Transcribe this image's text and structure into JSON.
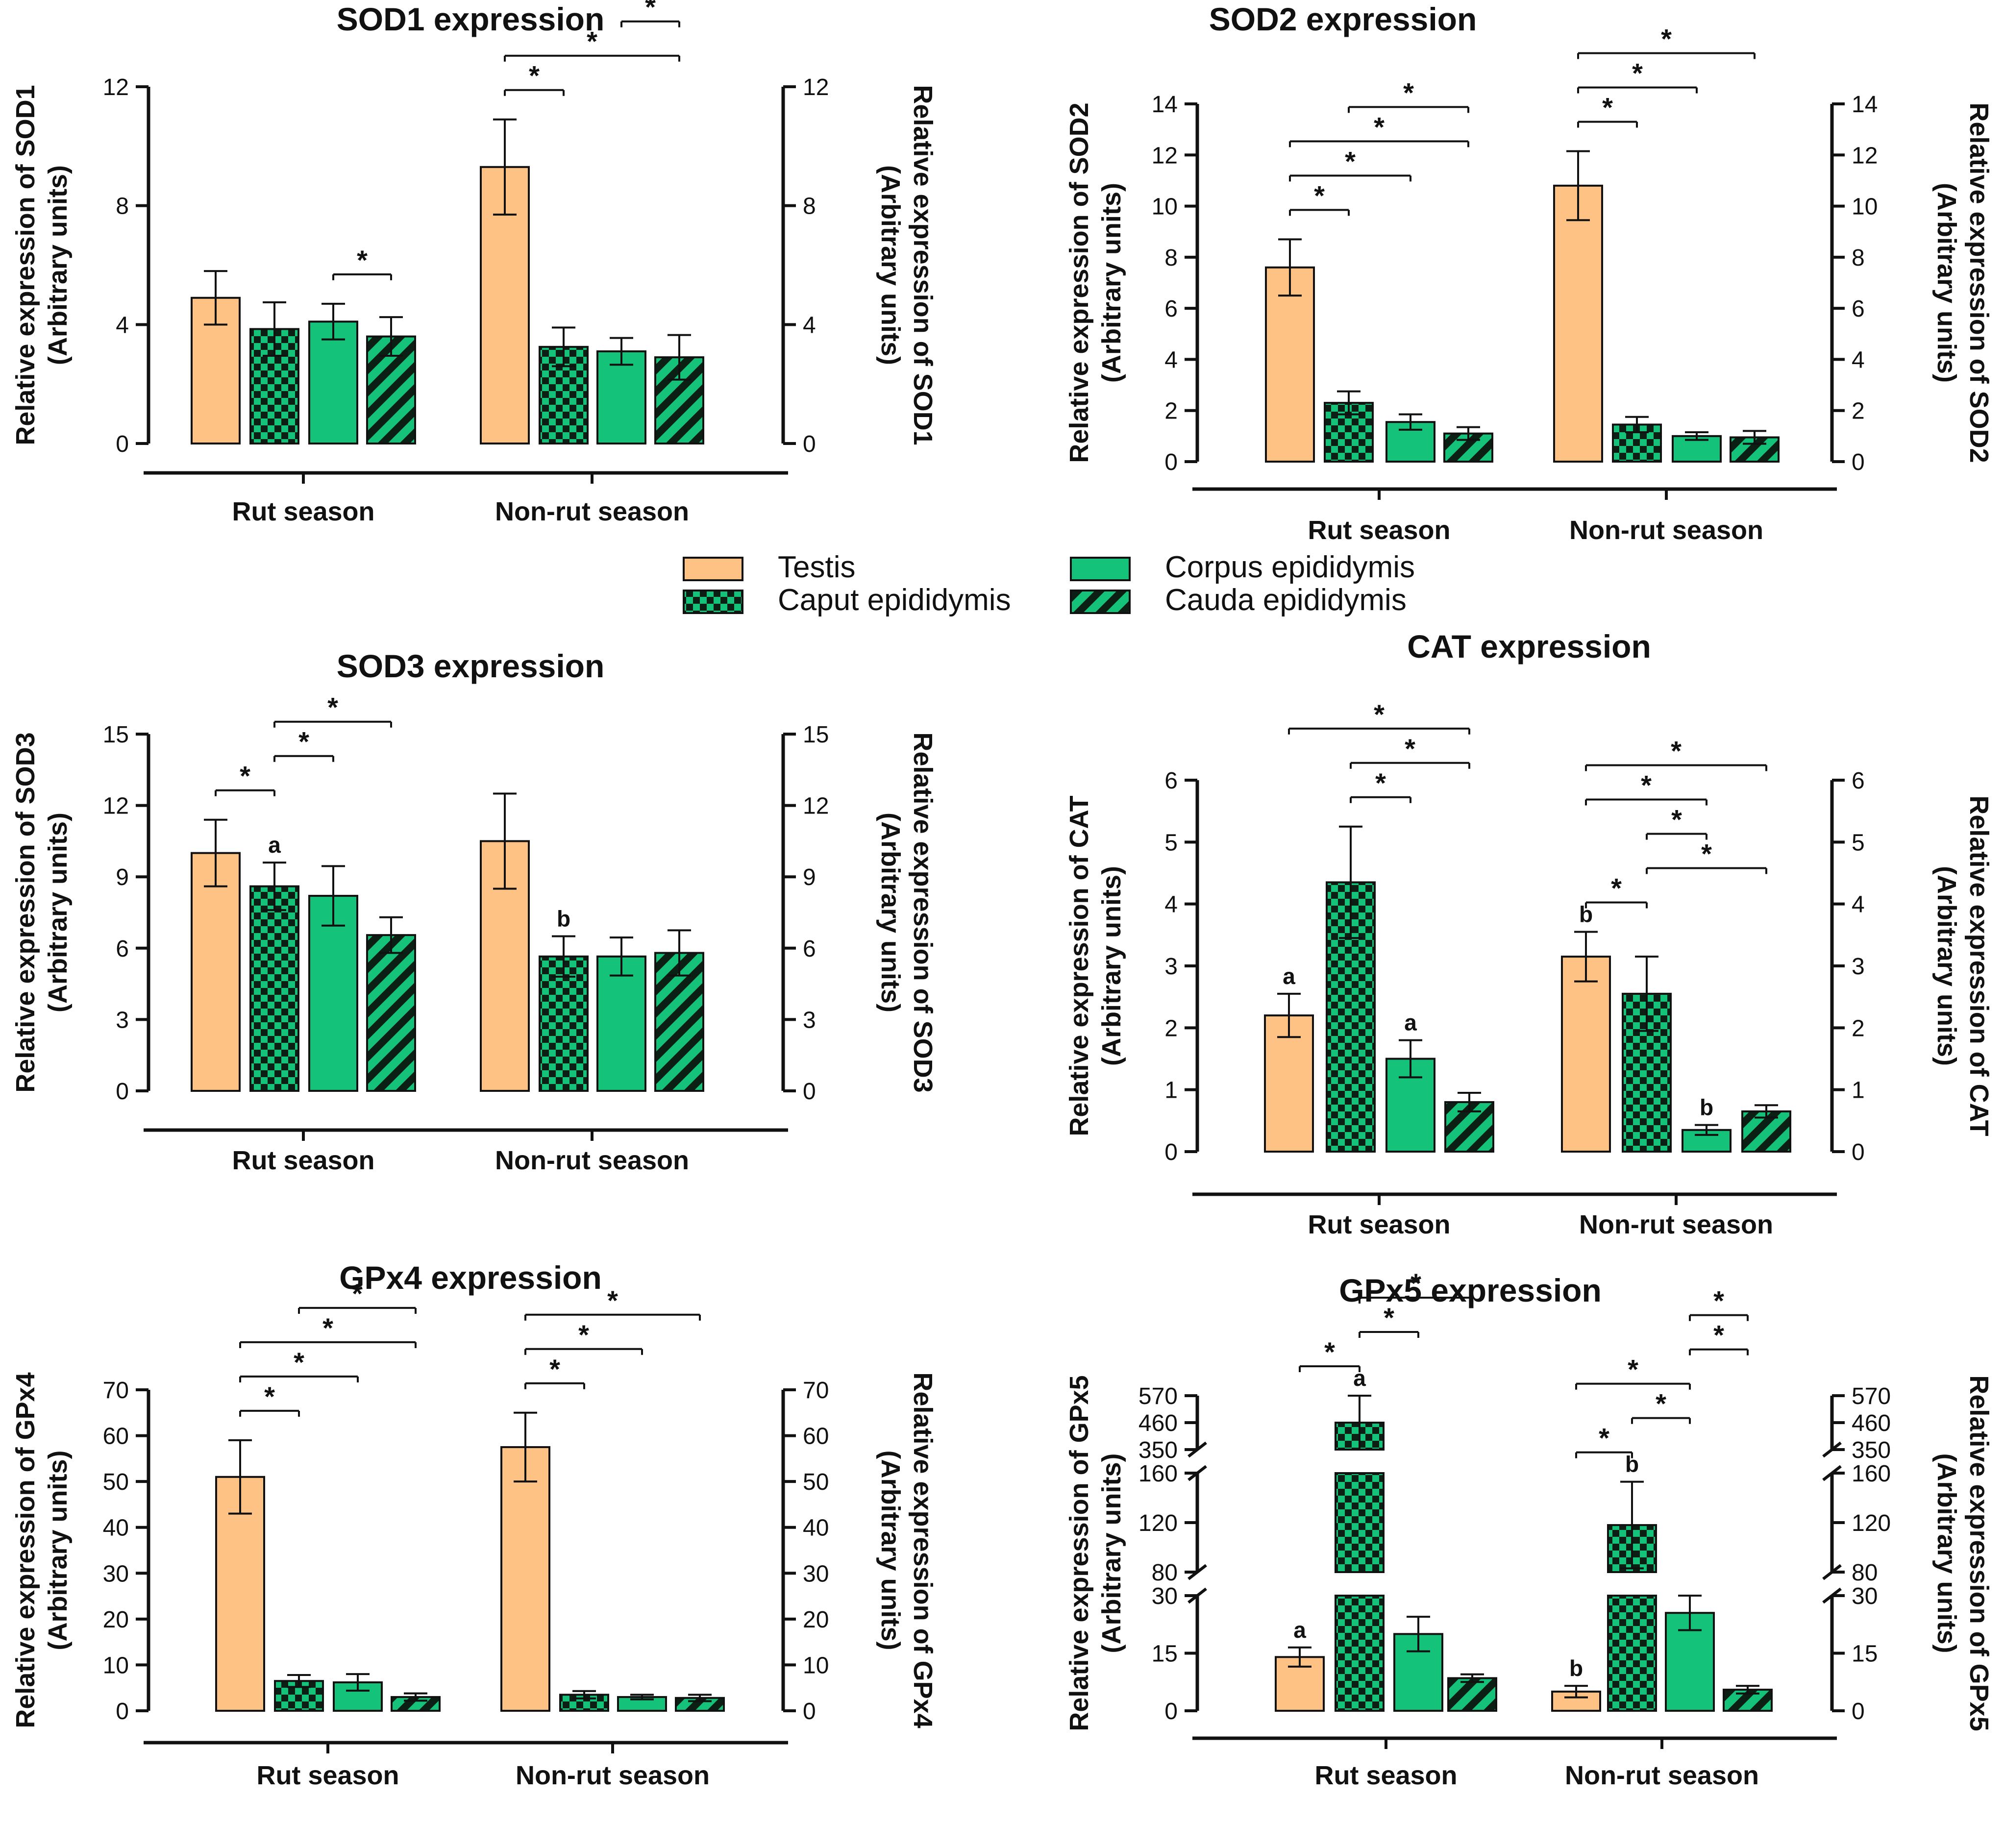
{
  "colors": {
    "testis": "#FFC285",
    "green": "#14C27A",
    "dark": "#0B1F14",
    "line": "#111111"
  },
  "legend": {
    "items": [
      {
        "name": "Testis",
        "pattern": "testis"
      },
      {
        "name": "Corpus epididymis",
        "pattern": "corpus"
      },
      {
        "name": "Caput epididymis",
        "pattern": "caput"
      },
      {
        "name": "Cauda epididymis",
        "pattern": "cauda"
      }
    ]
  },
  "chart_data": [
    {
      "id": "sod1",
      "type": "bar",
      "title": "SOD1 expression",
      "ylabel_left": [
        "Relative expression of SOD1",
        "(Arbitrary units)"
      ],
      "ylabel_right": [
        "Relative expression of SOD1",
        "(Arbitrary units)"
      ],
      "ylim": [
        0,
        12
      ],
      "yticks": [
        0,
        4,
        8,
        12
      ],
      "categories": [
        "Rut season",
        "Non-rut season"
      ],
      "series": [
        {
          "name": "Testis",
          "values": [
            4.9,
            9.3
          ],
          "errors": [
            0.9,
            1.6
          ]
        },
        {
          "name": "Caput epididymis",
          "values": [
            3.85,
            3.25
          ],
          "errors": [
            0.9,
            0.65
          ]
        },
        {
          "name": "Corpus epididymis",
          "values": [
            4.1,
            3.1
          ],
          "errors": [
            0.6,
            0.45
          ]
        },
        {
          "name": "Cauda epididymis",
          "values": [
            3.6,
            2.9
          ],
          "errors": [
            0.65,
            0.75
          ]
        }
      ],
      "brackets": [
        {
          "group": 0,
          "from": 2,
          "to": 3,
          "label": "*"
        },
        {
          "group": 1,
          "from": 0,
          "to": 1,
          "label": "*"
        },
        {
          "group": 1,
          "from": 0,
          "to": 3,
          "label": "*"
        },
        {
          "group": 1,
          "from": 2,
          "to": 3,
          "label": "*"
        }
      ],
      "letters": []
    },
    {
      "id": "sod2",
      "type": "bar",
      "title": "SOD2 expression",
      "ylabel_left": [
        "Relative expression of SOD2",
        "(Arbitrary units)"
      ],
      "ylabel_right": [
        "Relative expression of SOD2",
        "(Arbitrary units)"
      ],
      "ylim": [
        0,
        14
      ],
      "yticks": [
        0,
        2,
        4,
        6,
        8,
        10,
        12,
        14
      ],
      "categories": [
        "Rut season",
        "Non-rut season"
      ],
      "series": [
        {
          "name": "Testis",
          "values": [
            7.6,
            10.8
          ],
          "errors": [
            1.1,
            1.35
          ]
        },
        {
          "name": "Caput epididymis",
          "values": [
            2.3,
            1.45
          ],
          "errors": [
            0.45,
            0.3
          ]
        },
        {
          "name": "Corpus epididymis",
          "values": [
            1.55,
            1.0
          ],
          "errors": [
            0.3,
            0.15
          ]
        },
        {
          "name": "Cauda epididymis",
          "values": [
            1.1,
            0.95
          ],
          "errors": [
            0.25,
            0.25
          ]
        }
      ],
      "brackets": [
        {
          "group": 0,
          "from": 0,
          "to": 1,
          "label": "*"
        },
        {
          "group": 0,
          "from": 0,
          "to": 2,
          "label": "*"
        },
        {
          "group": 0,
          "from": 0,
          "to": 3,
          "label": "*"
        },
        {
          "group": 0,
          "from": 1,
          "to": 3,
          "label": "*"
        },
        {
          "group": 1,
          "from": 0,
          "to": 1,
          "label": "*"
        },
        {
          "group": 1,
          "from": 0,
          "to": 2,
          "label": "*"
        },
        {
          "group": 1,
          "from": 0,
          "to": 3,
          "label": "*"
        }
      ],
      "letters": []
    },
    {
      "id": "sod3",
      "type": "bar",
      "title": "SOD3 expression",
      "ylabel_left": [
        "Relative expression of SOD3",
        "(Arbitrary units)"
      ],
      "ylabel_right": [
        "Relative expression of SOD3",
        "(Arbitrary units)"
      ],
      "ylim": [
        0,
        15
      ],
      "yticks": [
        0,
        3,
        6,
        9,
        12,
        15
      ],
      "categories": [
        "Rut season",
        "Non-rut season"
      ],
      "series": [
        {
          "name": "Testis",
          "values": [
            10.0,
            10.5
          ],
          "errors": [
            1.4,
            2.0
          ]
        },
        {
          "name": "Caput epididymis",
          "values": [
            8.6,
            5.65
          ],
          "errors": [
            1.0,
            0.85
          ]
        },
        {
          "name": "Corpus epididymis",
          "values": [
            8.2,
            5.65
          ],
          "errors": [
            1.25,
            0.8
          ]
        },
        {
          "name": "Cauda epididymis",
          "values": [
            6.55,
            5.8
          ],
          "errors": [
            0.75,
            0.95
          ]
        }
      ],
      "brackets": [
        {
          "group": 0,
          "from": 0,
          "to": 1,
          "label": "*"
        },
        {
          "group": 0,
          "from": 1,
          "to": 2,
          "label": "*"
        },
        {
          "group": 0,
          "from": 1,
          "to": 3,
          "label": "*"
        }
      ],
      "letters": [
        {
          "group": 0,
          "series": 1,
          "label": "a"
        },
        {
          "group": 1,
          "series": 1,
          "label": "b"
        }
      ]
    },
    {
      "id": "cat",
      "type": "bar",
      "title": "CAT expression",
      "ylabel_left": [
        "Relative expression of CAT",
        "(Arbitrary units)"
      ],
      "ylabel_right": [
        "Relative expression of CAT",
        "(Arbitrary units)"
      ],
      "ylim": [
        0,
        6
      ],
      "yticks": [
        0,
        1,
        2,
        3,
        4,
        5,
        6
      ],
      "categories": [
        "Rut season",
        "Non-rut season"
      ],
      "series": [
        {
          "name": "Testis",
          "values": [
            2.2,
            3.15
          ],
          "errors": [
            0.35,
            0.4
          ]
        },
        {
          "name": "Caput epididymis",
          "values": [
            4.35,
            2.55
          ],
          "errors": [
            0.9,
            0.6
          ]
        },
        {
          "name": "Corpus epididymis",
          "values": [
            1.5,
            0.35
          ],
          "errors": [
            0.3,
            0.08
          ]
        },
        {
          "name": "Cauda epididymis",
          "values": [
            0.8,
            0.65
          ],
          "errors": [
            0.15,
            0.1
          ]
        }
      ],
      "brackets": [
        {
          "group": 0,
          "from": 1,
          "to": 2,
          "label": "*"
        },
        {
          "group": 0,
          "from": 1,
          "to": 3,
          "label": "*"
        },
        {
          "group": 0,
          "from": 0,
          "to": 3,
          "label": "*"
        },
        {
          "group": 1,
          "from": 0,
          "to": 1,
          "label": "*"
        },
        {
          "group": 1,
          "from": 1,
          "to": 3,
          "label": "*"
        },
        {
          "group": 1,
          "from": 1,
          "to": 2,
          "label": "*"
        },
        {
          "group": 1,
          "from": 0,
          "to": 2,
          "label": "*"
        },
        {
          "group": 1,
          "from": 0,
          "to": 3,
          "label": "*"
        }
      ],
      "letters": [
        {
          "group": 0,
          "series": 0,
          "label": "a"
        },
        {
          "group": 0,
          "series": 2,
          "label": "a"
        },
        {
          "group": 1,
          "series": 0,
          "label": "b"
        },
        {
          "group": 1,
          "series": 2,
          "label": "b"
        }
      ]
    },
    {
      "id": "gpx4",
      "type": "bar",
      "title": "GPx4 expression",
      "ylabel_left": [
        "Relative expression of GPx4",
        "(Arbitrary units)"
      ],
      "ylabel_right": [
        "Relative expression of GPx4",
        "(Arbitrary units)"
      ],
      "ylim": [
        0,
        70
      ],
      "yticks": [
        0,
        10,
        20,
        30,
        40,
        50,
        60,
        70
      ],
      "categories": [
        "Rut season",
        "Non-rut season"
      ],
      "series": [
        {
          "name": "Testis",
          "values": [
            51.0,
            57.5
          ],
          "errors": [
            8.0,
            7.5
          ]
        },
        {
          "name": "Caput epididymis",
          "values": [
            6.5,
            3.5
          ],
          "errors": [
            1.3,
            0.8
          ]
        },
        {
          "name": "Corpus epididymis",
          "values": [
            6.2,
            3.0
          ],
          "errors": [
            1.8,
            0.5
          ]
        },
        {
          "name": "Cauda epididymis",
          "values": [
            3.0,
            2.8
          ],
          "errors": [
            0.8,
            0.7
          ]
        }
      ],
      "brackets": [
        {
          "group": 0,
          "from": 0,
          "to": 1,
          "label": "*"
        },
        {
          "group": 0,
          "from": 0,
          "to": 2,
          "label": "*"
        },
        {
          "group": 0,
          "from": 0,
          "to": 3,
          "label": "*"
        },
        {
          "group": 0,
          "from": 1,
          "to": 3,
          "label": "*"
        },
        {
          "group": 1,
          "from": 0,
          "to": 1,
          "label": "*"
        },
        {
          "group": 1,
          "from": 0,
          "to": 2,
          "label": "*"
        },
        {
          "group": 1,
          "from": 0,
          "to": 3,
          "label": "*"
        }
      ],
      "letters": []
    },
    {
      "id": "gpx5",
      "type": "bar",
      "title": "GPx5 expression",
      "ylabel_left": [
        "Relative expression of GPx5",
        "(Arbitrary units)"
      ],
      "ylabel_right": [
        "Relative expression of GPx5",
        "(Arbitrary units)"
      ],
      "broken_axis": [
        [
          0,
          30
        ],
        [
          80,
          160
        ],
        [
          350,
          570
        ]
      ],
      "yticks": [
        0,
        15,
        30,
        80,
        120,
        160,
        350,
        460,
        570
      ],
      "categories": [
        "Rut season",
        "Non-rut season"
      ],
      "series": [
        {
          "name": "Testis",
          "values": [
            14.0,
            5.0
          ],
          "errors": [
            2.5,
            1.5
          ]
        },
        {
          "name": "Caput epididymis",
          "values": [
            460,
            118
          ],
          "errors": [
            110,
            35
          ]
        },
        {
          "name": "Corpus epididymis",
          "values": [
            20.0,
            25.5
          ],
          "errors": [
            4.5,
            4.5
          ]
        },
        {
          "name": "Cauda epididymis",
          "values": [
            8.5,
            5.5
          ],
          "errors": [
            1.0,
            1.0
          ]
        }
      ],
      "brackets": [
        {
          "group": 0,
          "from": 0,
          "to": 1,
          "label": "*"
        },
        {
          "group": 0,
          "from": 1,
          "to": 2,
          "label": "*"
        },
        {
          "group": 0,
          "from": 1,
          "to": 3,
          "label": "*"
        },
        {
          "group": 1,
          "from": 0,
          "to": 1,
          "label": "*"
        },
        {
          "group": 1,
          "from": 1,
          "to": 2,
          "label": "*"
        },
        {
          "group": 1,
          "from": 0,
          "to": 2,
          "label": "*"
        },
        {
          "group": 1,
          "from": 2,
          "to": 3,
          "label": "*"
        },
        {
          "group": 1,
          "from": 2,
          "to": 3,
          "label": "*"
        }
      ],
      "letters": [
        {
          "group": 0,
          "series": 0,
          "label": "a"
        },
        {
          "group": 0,
          "series": 1,
          "label": "a"
        },
        {
          "group": 1,
          "series": 0,
          "label": "b"
        },
        {
          "group": 1,
          "series": 1,
          "label": "b"
        }
      ]
    }
  ]
}
